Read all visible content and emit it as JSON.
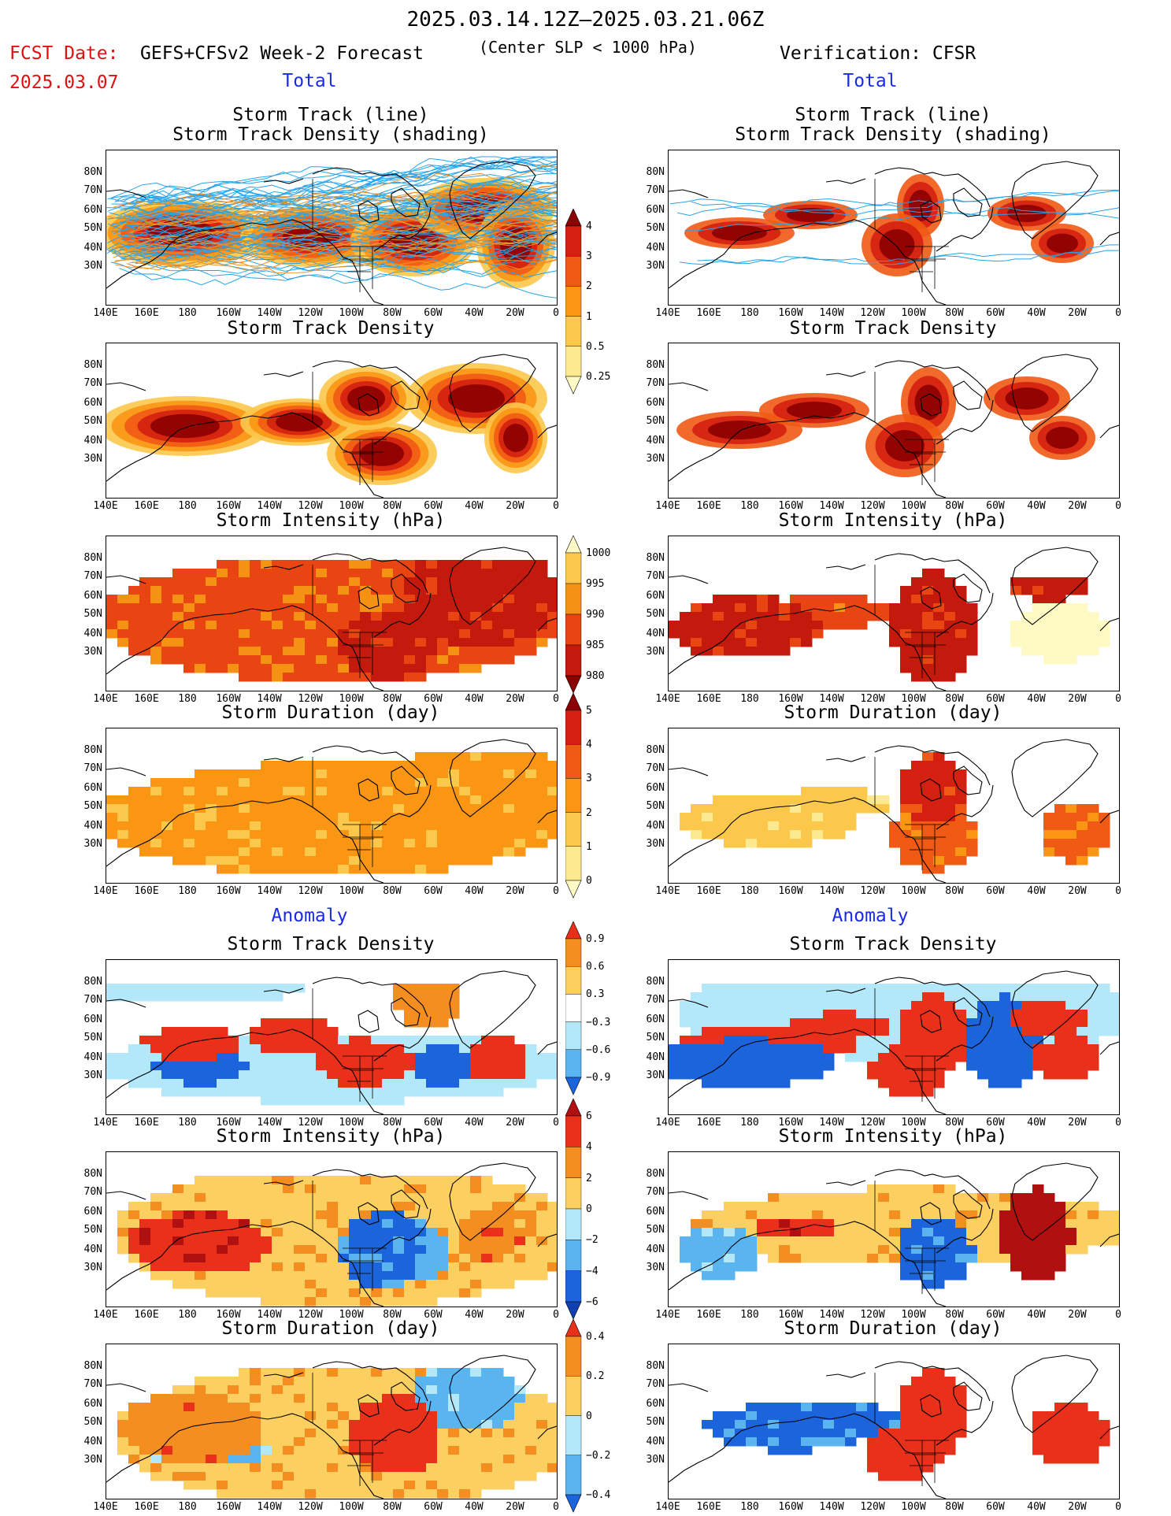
{
  "header": {
    "main_title": "2025.03.14.12Z–2025.03.21.06Z",
    "fcst_label": "FCST Date:",
    "fcst_date": "2025.03.07",
    "model_title": "GEFS+CFSv2 Week-2 Forecast",
    "model_subtitle": "(Center SLP < 1000 hPa)",
    "verification_title": "Verification: CFSR"
  },
  "sections": {
    "total": "Total",
    "anomaly": "Anomaly"
  },
  "panel_titles": {
    "track_line": "Storm Track (line)",
    "track_shading": "Storm Track Density (shading)",
    "density": "Storm Track Density",
    "intensity": "Storm Intensity (hPa)",
    "duration": "Storm Duration (day)"
  },
  "axes": {
    "lat_labels": [
      "80N",
      "70N",
      "60N",
      "50N",
      "40N",
      "30N"
    ],
    "lon_labels": [
      "140E",
      "160E",
      "180",
      "160W",
      "140W",
      "120W",
      "100W",
      "80W",
      "60W",
      "40W",
      "20W",
      "0"
    ]
  },
  "colorbars": {
    "density_total": {
      "labels": [
        "4",
        "3",
        "2",
        "1",
        "0.5",
        "0.25"
      ],
      "colors": [
        "#8b0000",
        "#d42010",
        "#f05a14",
        "#fa9614",
        "#fbc84b",
        "#fde98f",
        "#fff9c4"
      ]
    },
    "intensity_total": {
      "labels": [
        "1000",
        "995",
        "990",
        "985",
        "980"
      ],
      "colors": [
        "#fff9c4",
        "#fbc84b",
        "#f59214",
        "#e84512",
        "#c41a0d",
        "#8b0000"
      ]
    },
    "duration_total": {
      "labels": [
        "5",
        "4",
        "3",
        "2",
        "1",
        "0"
      ],
      "colors": [
        "#8b0000",
        "#d42010",
        "#f05a14",
        "#fa9614",
        "#fbc84b",
        "#fde98f",
        "#fff9c4"
      ]
    },
    "density_anom": {
      "labels": [
        "0.9",
        "0.6",
        "0.3",
        "−0.3",
        "−0.6",
        "−0.9"
      ],
      "colors": [
        "#e8301a",
        "#f58e20",
        "#fbd060",
        "#ffffff",
        "#b3e8fa",
        "#5ab4f0",
        "#1c64dc"
      ]
    },
    "intensity_anom": {
      "labels": [
        "6",
        "4",
        "2",
        "0",
        "−2",
        "−4",
        "−6"
      ],
      "colors": [
        "#b01010",
        "#e8301a",
        "#f58e20",
        "#fbd060",
        "#b3e8fa",
        "#5ab4f0",
        "#1c64dc",
        "#1040b0"
      ]
    },
    "duration_anom": {
      "labels": [
        "0.4",
        "0.2",
        "0",
        "−0.2",
        "−0.4"
      ],
      "colors": [
        "#e8301a",
        "#f58e20",
        "#fbd060",
        "#b3e8fa",
        "#5ab4f0",
        "#1c64dc"
      ]
    }
  },
  "colors": {
    "forecast_red": "#e01010",
    "section_blue": "#1a2be8",
    "track_line": "#29a3e8"
  }
}
